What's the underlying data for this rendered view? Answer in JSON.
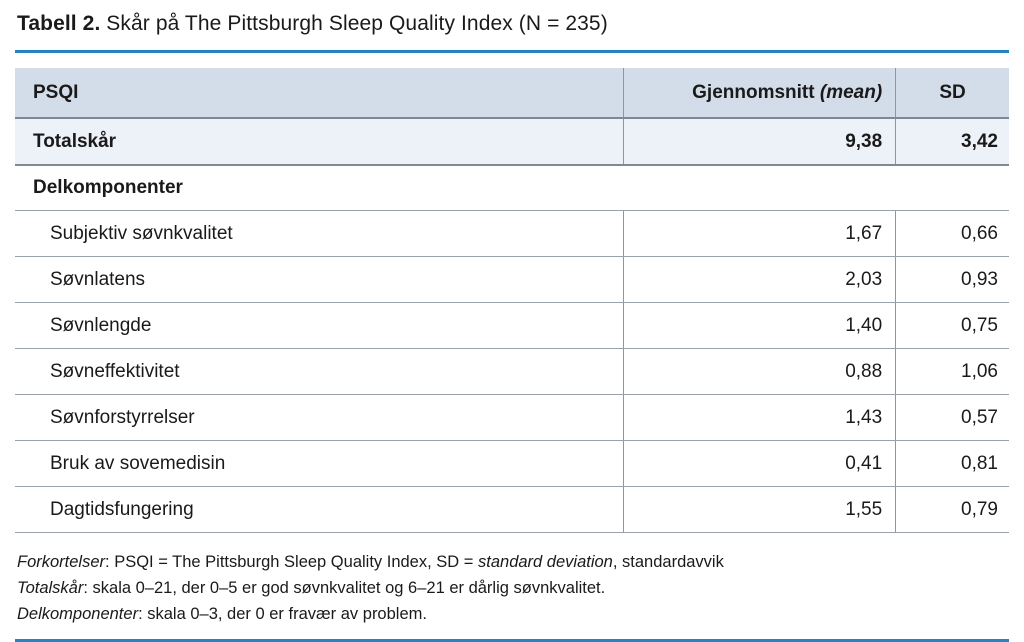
{
  "title": {
    "label": "Tabell 2.",
    "text": " Skår på The Pittsburgh Sleep Quality Index (N = 235)"
  },
  "table": {
    "header": {
      "psqi": "PSQI",
      "mean": "Gjennomsnitt ",
      "mean_italic": "(mean)",
      "sd": "SD"
    },
    "total": {
      "label": "Totalskår",
      "mean": "9,38",
      "sd": "3,42"
    },
    "section_label": "Delkomponenter",
    "rows": [
      {
        "label": "Subjektiv søvnkvalitet",
        "mean": "1,67",
        "sd": "0,66"
      },
      {
        "label": "Søvnlatens",
        "mean": "2,03",
        "sd": "0,93"
      },
      {
        "label": "Søvnlengde",
        "mean": "1,40",
        "sd": "0,75"
      },
      {
        "label": "Søvneffektivitet",
        "mean": "0,88",
        "sd": "1,06"
      },
      {
        "label": "Søvnforstyrrelser",
        "mean": "1,43",
        "sd": "0,57"
      },
      {
        "label": "Bruk av sovemedisin",
        "mean": "0,41",
        "sd": "0,81"
      },
      {
        "label": "Dagtidsfungering",
        "mean": "1,55",
        "sd": "0,79"
      }
    ]
  },
  "footnotes": [
    {
      "lead": "Forkortelser",
      "part1": ": PSQI = The Pittsburgh Sleep Quality Index, SD = ",
      "italic": "standard deviation",
      "part2": ", standardavvik"
    },
    {
      "lead": "Totalskår",
      "part1": ": skala 0–21, der 0–5 er god søvnkvalitet og 6–21 er dårlig søvnkvalitet."
    },
    {
      "lead": "Delkomponenter",
      "part1": ": skala 0–3, der 0 er fravær av problem."
    }
  ],
  "colors": {
    "accent_rule": "#2583c2",
    "header_bg": "#d3dde9",
    "total_row_bg": "#edf1f8",
    "border_dark": "#7f8894",
    "border_light": "#9aa1ab",
    "text": "#1a1a1a"
  }
}
